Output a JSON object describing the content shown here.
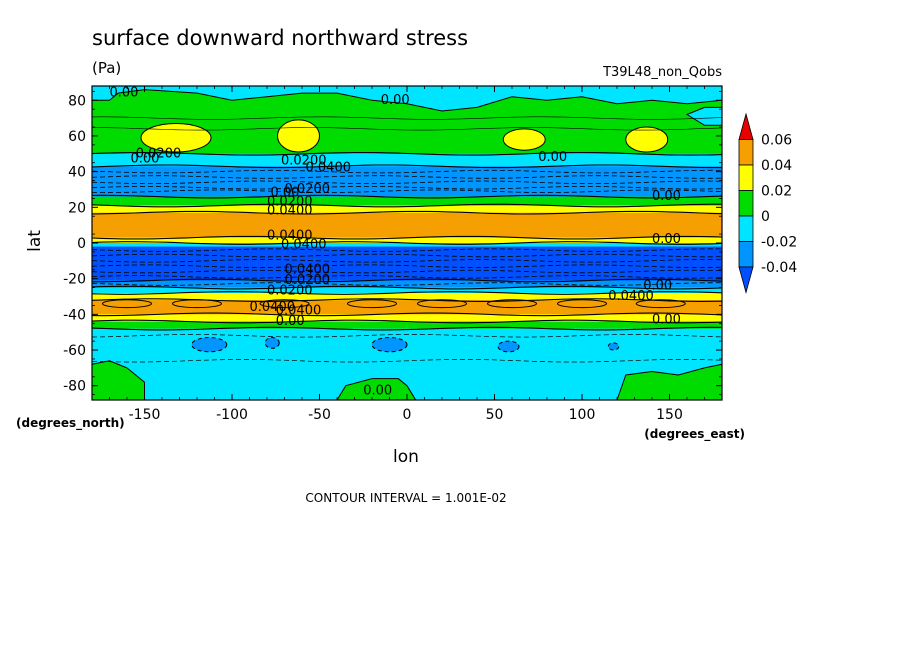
{
  "chart_data": {
    "type": "heatmap",
    "title": "surface downward northward stress",
    "units": "(Pa)",
    "dataset": "T39L48_non_Qobs",
    "xlabel": "lon",
    "ylabel": "lat",
    "x_units": "(degrees_east)",
    "y_units": "(degrees_north)",
    "xlim": [
      -180,
      180
    ],
    "ylim": [
      -88,
      88
    ],
    "x_ticks": [
      -150,
      -100,
      -50,
      0,
      50,
      100,
      150
    ],
    "y_ticks": [
      -80,
      -60,
      -40,
      -20,
      0,
      20,
      40,
      60,
      80
    ],
    "x_tick_labels": [
      "-150",
      "-100",
      "-50",
      "0",
      "50",
      "100",
      "150"
    ],
    "y_tick_labels": [
      "-80",
      "-60",
      "-40",
      "-20",
      "0",
      "20",
      "40",
      "60",
      "80"
    ],
    "footer": "CONTOUR INTERVAL = 1.001E-02",
    "colorbar": {
      "levels": [
        0.06,
        0.04,
        0.02,
        0,
        -0.02,
        -0.04
      ],
      "labels": [
        "0.06",
        "0.04",
        "0.02",
        "0",
        "-0.02",
        "-0.04"
      ],
      "colors": [
        "#e60000",
        "#f5a000",
        "#ffff00",
        "#00dc00",
        "#00e5ff",
        "#0095ff",
        "#0050ff"
      ]
    },
    "bands": [
      {
        "lat_top": 88,
        "lat_bottom": 50,
        "level": "0 to 0.02"
      },
      {
        "lat_top": 50,
        "lat_bottom": 43,
        "level": "-0.02 to 0"
      },
      {
        "lat_top": 43,
        "lat_bottom": 26,
        "level": "-0.04 to -0.02"
      },
      {
        "lat_top": 26,
        "lat_bottom": 21,
        "level": "0 to 0.02"
      },
      {
        "lat_top": 21,
        "lat_bottom": 17,
        "level": "0.02 to 0.04"
      },
      {
        "lat_top": 17,
        "lat_bottom": 3,
        "level": "0.04 to 0.06"
      },
      {
        "lat_top": 3,
        "lat_bottom": 0,
        "level": "0.02 to 0.04"
      },
      {
        "lat_top": 0,
        "lat_bottom": -2,
        "level": "-0.02 to 0"
      },
      {
        "lat_top": -2,
        "lat_bottom": -21,
        "level": "< -0.04"
      },
      {
        "lat_top": -21,
        "lat_bottom": -25,
        "level": "-0.04 to -0.02"
      },
      {
        "lat_top": -25,
        "lat_bottom": -28,
        "level": "-0.02 to 0"
      },
      {
        "lat_top": -28,
        "lat_bottom": -32,
        "level": "0.02 to 0.04"
      },
      {
        "lat_top": -32,
        "lat_bottom": -40,
        "level": "0.04 to 0.06"
      },
      {
        "lat_top": -40,
        "lat_bottom": -44,
        "level": "0.02 to 0.04"
      },
      {
        "lat_top": -44,
        "lat_bottom": -48,
        "level": "0 to 0.02"
      },
      {
        "lat_top": -48,
        "lat_bottom": -88,
        "level": "-0.02 to 0"
      }
    ],
    "annotations": [
      {
        "text": "0.00",
        "lon": -170,
        "lat": 82
      },
      {
        "text": "0.00",
        "lon": -15,
        "lat": 78
      },
      {
        "text": "0.0200",
        "lon": -155,
        "lat": 48
      },
      {
        "text": "0.00",
        "lon": -158,
        "lat": 45
      },
      {
        "text": "0.0200",
        "lon": -72,
        "lat": 44
      },
      {
        "text": "0.0400",
        "lon": -58,
        "lat": 40
      },
      {
        "text": "0.00",
        "lon": 75,
        "lat": 46
      },
      {
        "text": "0.00",
        "lon": -78,
        "lat": 26
      },
      {
        "text": "0.0200",
        "lon": -70,
        "lat": 28
      },
      {
        "text": "0.0200",
        "lon": -80,
        "lat": 21
      },
      {
        "text": "0.0400",
        "lon": -80,
        "lat": 16
      },
      {
        "text": "0.00",
        "lon": 140,
        "lat": 24
      },
      {
        "text": "0.0400",
        "lon": -80,
        "lat": 2
      },
      {
        "text": "0.0400",
        "lon": -72,
        "lat": -3
      },
      {
        "text": "0.00",
        "lon": 140,
        "lat": 0
      },
      {
        "text": "0.0400",
        "lon": -70,
        "lat": -17
      },
      {
        "text": "0.0200",
        "lon": -70,
        "lat": -23
      },
      {
        "text": "0.0200",
        "lon": -80,
        "lat": -29
      },
      {
        "text": "0.00",
        "lon": 135,
        "lat": -26
      },
      {
        "text": "0.0400",
        "lon": 115,
        "lat": -32
      },
      {
        "text": "0.0400",
        "lon": -90,
        "lat": -38
      },
      {
        "text": "0.0400",
        "lon": -75,
        "lat": -40
      },
      {
        "text": "0.00",
        "lon": -75,
        "lat": -46
      },
      {
        "text": "0.00",
        "lon": 140,
        "lat": -45
      },
      {
        "text": "0.00",
        "lon": -25,
        "lat": -85
      }
    ]
  }
}
